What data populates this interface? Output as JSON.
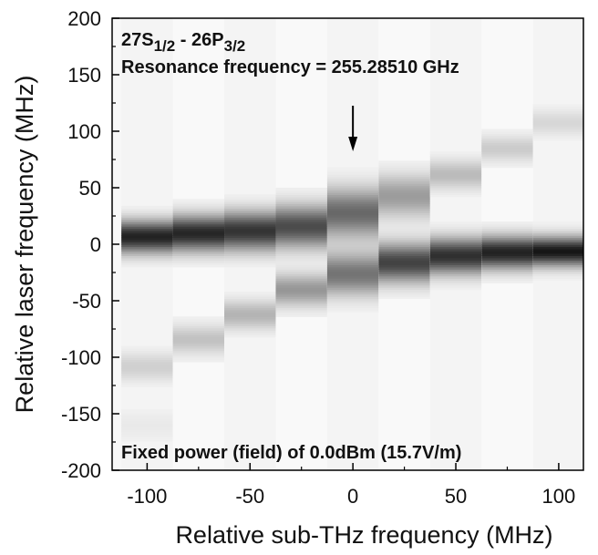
{
  "chart_data": {
    "type": "heatmap",
    "title": "",
    "xlabel": "Relative sub-THz frequency (MHz)",
    "ylabel": "Relative laser frequency (MHz)",
    "xlim": [
      -117,
      112
    ],
    "ylim": [
      -200,
      200
    ],
    "xticks": [
      -100,
      -50,
      0,
      50,
      100
    ],
    "xtick_labels": [
      "-100",
      "-50",
      "0",
      "50",
      "100"
    ],
    "yticks": [
      -200,
      -150,
      -100,
      -50,
      0,
      50,
      100,
      150,
      200
    ],
    "ytick_labels": [
      "-200",
      "-150",
      "-100",
      "-50",
      "0",
      "50",
      "100",
      "150",
      "200"
    ],
    "grid": false,
    "colormap": "grayscale (white = 0, black = 1)",
    "annotations": {
      "transition": {
        "base1": "27S",
        "sub1": "1/2",
        "sep": " - ",
        "base2": "26P",
        "sub2": "3/2"
      },
      "resonance": "Resonance frequency = 255.28510 GHz",
      "power": "Fixed power (field) of 0.0dBm (15.7V/m)",
      "arrow_x": 0
    },
    "columns": [
      {
        "x": -100,
        "peaks": [
          {
            "y": 7,
            "width": 10,
            "intensity": 0.9
          },
          {
            "y": -108,
            "width": 9,
            "intensity": 0.16
          },
          {
            "y": -160,
            "width": 10,
            "intensity": 0.05
          }
        ]
      },
      {
        "x": -75,
        "peaks": [
          {
            "y": 10,
            "width": 11,
            "intensity": 0.88
          },
          {
            "y": -84,
            "width": 9,
            "intensity": 0.22
          }
        ]
      },
      {
        "x": -50,
        "peaks": [
          {
            "y": 12,
            "width": 12,
            "intensity": 0.82
          },
          {
            "y": -62,
            "width": 9,
            "intensity": 0.28
          }
        ]
      },
      {
        "x": -25,
        "peaks": [
          {
            "y": 16,
            "width": 13,
            "intensity": 0.72
          },
          {
            "y": -40,
            "width": 10,
            "intensity": 0.4
          }
        ]
      },
      {
        "x": 0,
        "peaks": [
          {
            "y": 28,
            "width": 15,
            "intensity": 0.6
          },
          {
            "y": -26,
            "width": 13,
            "intensity": 0.55
          }
        ]
      },
      {
        "x": 25,
        "peaks": [
          {
            "y": -16,
            "width": 12,
            "intensity": 0.76
          },
          {
            "y": 43,
            "width": 13,
            "intensity": 0.38
          }
        ]
      },
      {
        "x": 50,
        "peaks": [
          {
            "y": -10,
            "width": 11,
            "intensity": 0.84
          },
          {
            "y": 62,
            "width": 9,
            "intensity": 0.25
          }
        ]
      },
      {
        "x": 75,
        "peaks": [
          {
            "y": -7,
            "width": 10,
            "intensity": 0.9
          },
          {
            "y": 85,
            "width": 8,
            "intensity": 0.18
          }
        ]
      },
      {
        "x": 100,
        "peaks": [
          {
            "y": -6,
            "width": 9,
            "intensity": 0.95
          },
          {
            "y": 108,
            "width": 8,
            "intensity": 0.13
          }
        ]
      }
    ],
    "column_width": 25
  }
}
